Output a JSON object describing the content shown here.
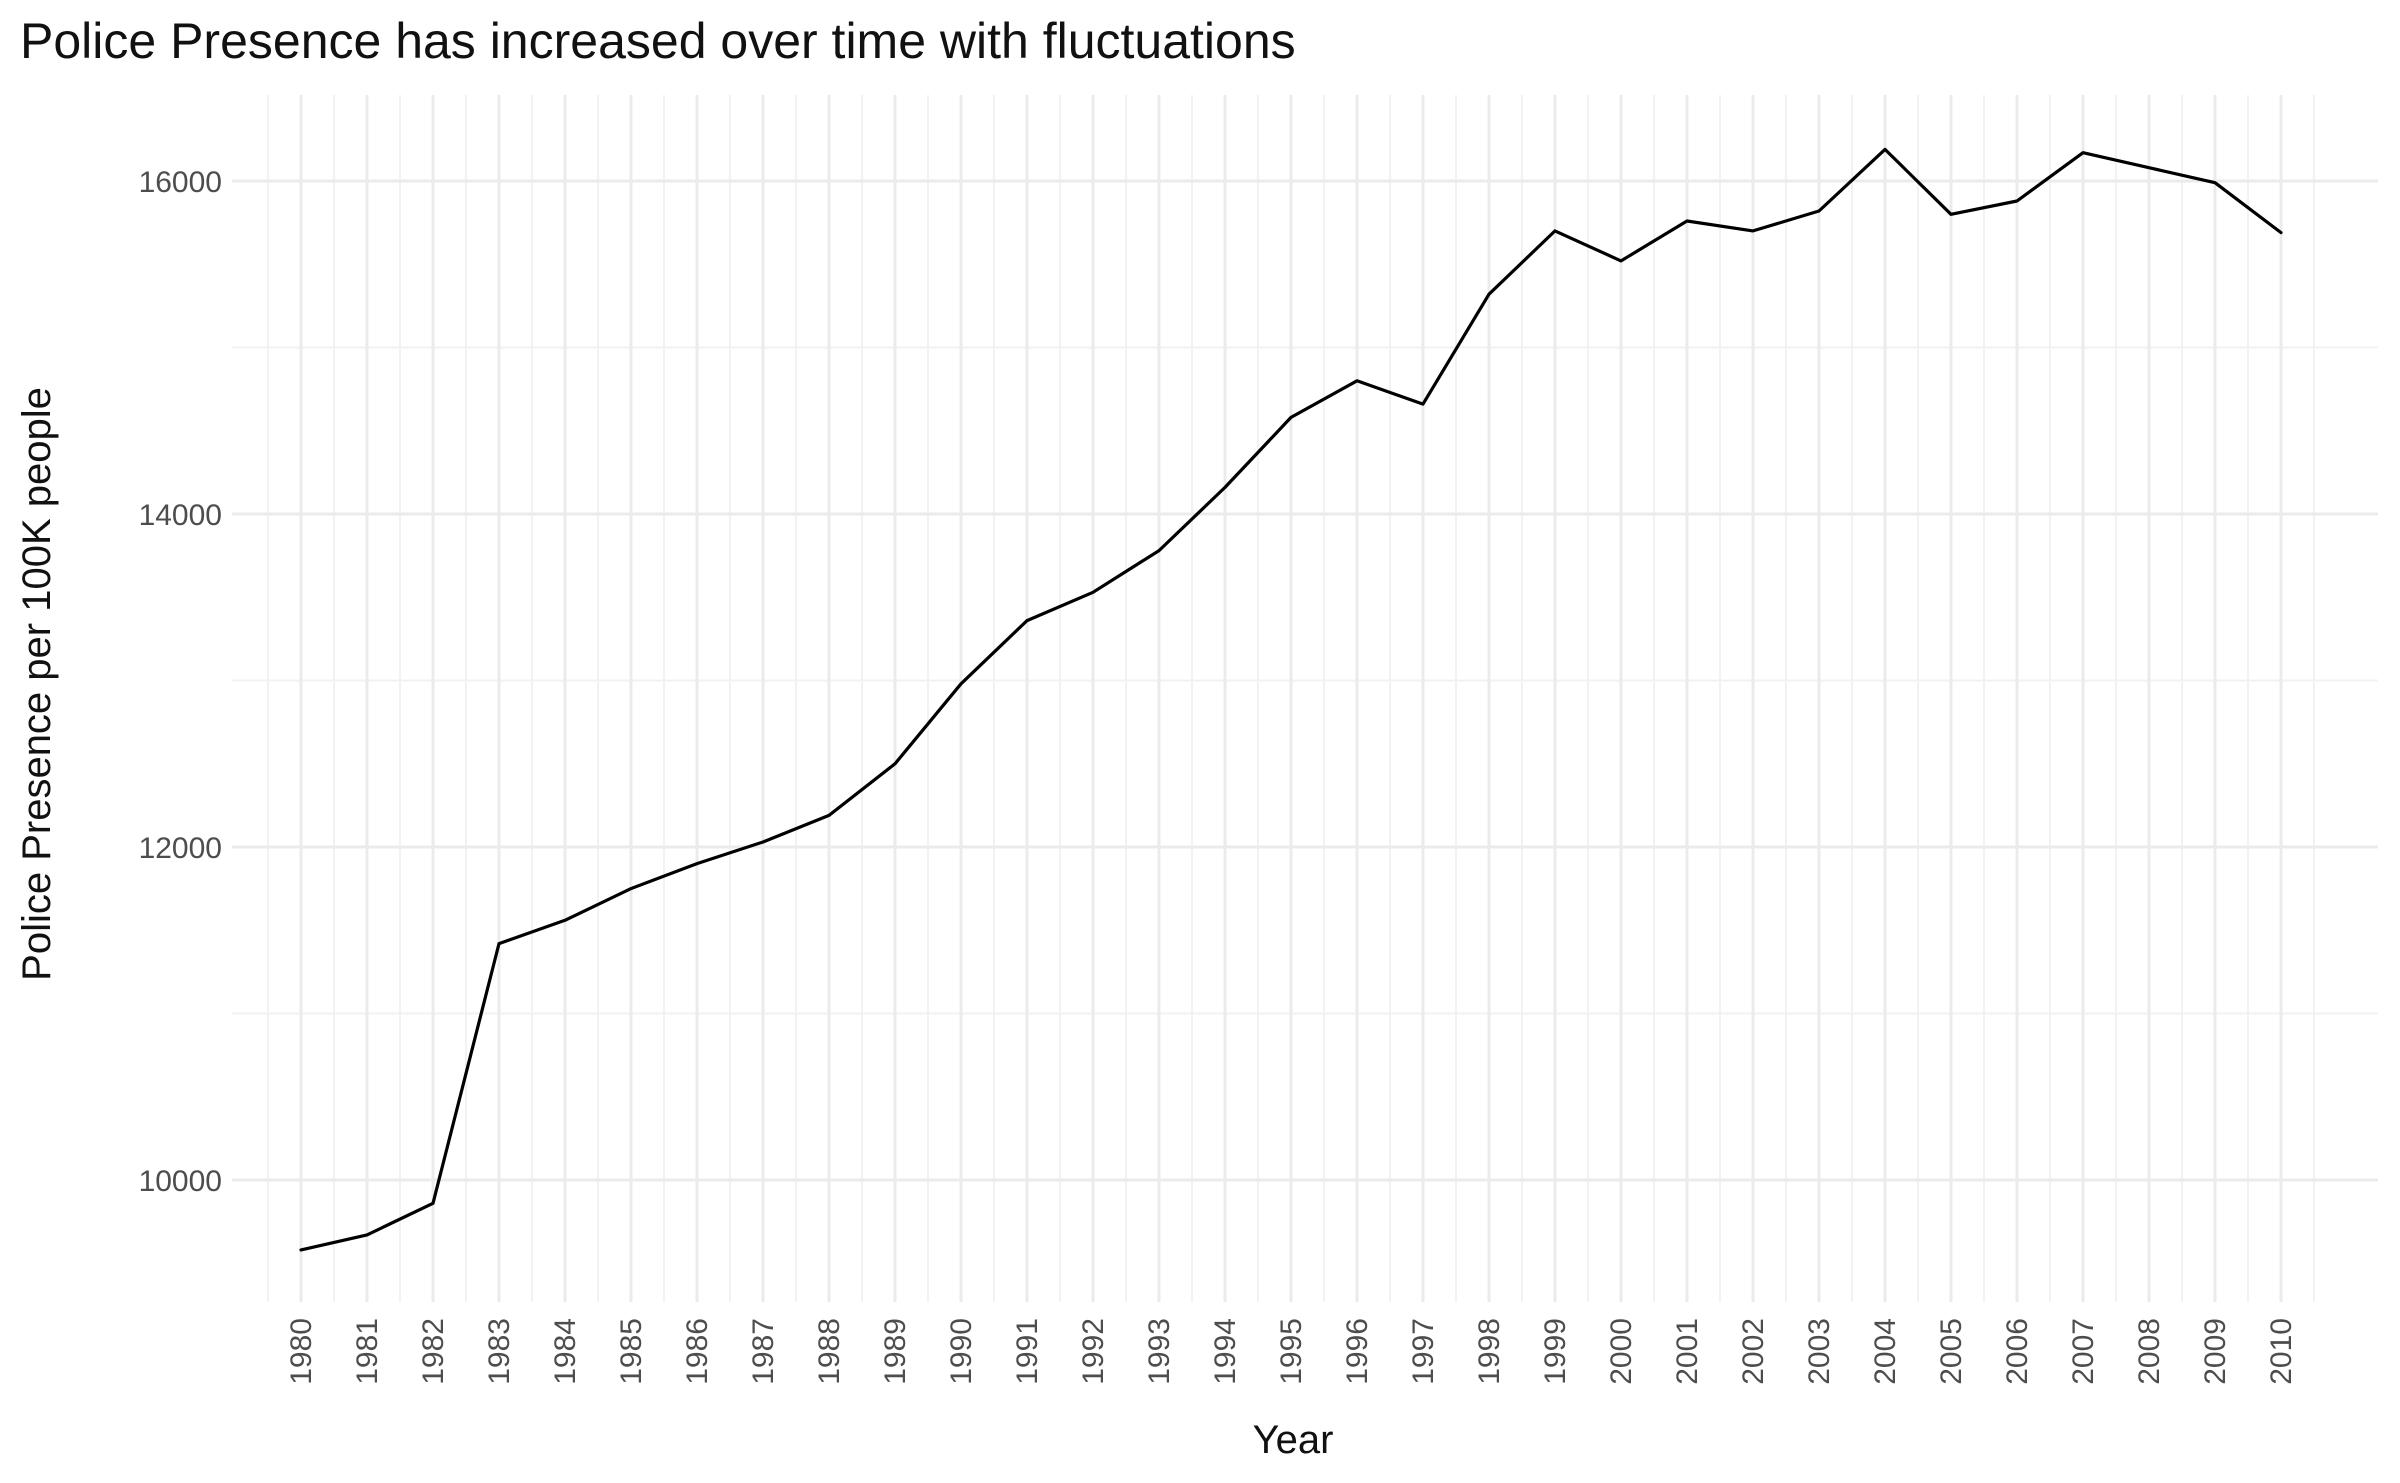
{
  "chart_data": {
    "type": "line",
    "title": "Police Presence has increased over time with fluctuations",
    "xlabel": "Year",
    "ylabel": "Police Presence per 100K people",
    "x": [
      "1980",
      "1981",
      "1982",
      "1983",
      "1984",
      "1985",
      "1986",
      "1987",
      "1988",
      "1989",
      "1990",
      "1991",
      "1992",
      "1993",
      "1994",
      "1995",
      "1996",
      "1997",
      "1998",
      "1999",
      "2000",
      "2001",
      "2002",
      "2003",
      "2004",
      "2005",
      "2006",
      "2007",
      "2008",
      "2009",
      "2010"
    ],
    "series": [
      {
        "values": [
          9580,
          9670,
          9860,
          11420,
          11560,
          11750,
          11900,
          12030,
          12190,
          12500,
          12980,
          13360,
          13530,
          13780,
          14160,
          14580,
          14800,
          14660,
          15320,
          15700,
          15520,
          15760,
          15700,
          15820,
          16190,
          15800,
          15880,
          16170,
          16080,
          15990,
          15690
        ],
        "color": "#000000"
      }
    ],
    "yticks": [
      10000,
      12000,
      14000,
      16000
    ],
    "ylim": [
      9300,
      16500
    ],
    "grid": true,
    "legend": "none"
  }
}
